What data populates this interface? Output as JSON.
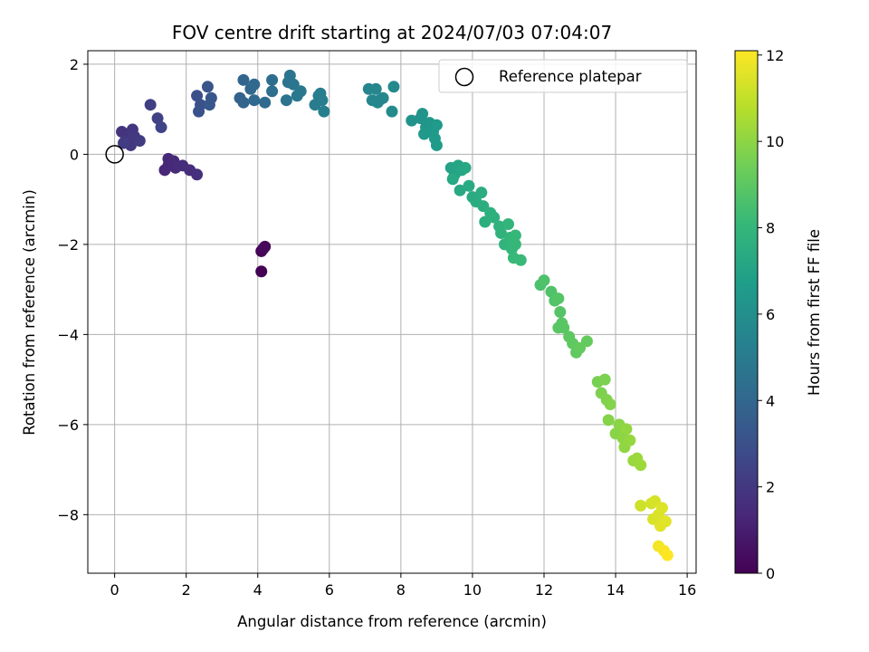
{
  "chart_data": {
    "type": "scatter",
    "title": "FOV centre drift starting at 2024/07/03 07:04:07",
    "xlabel": "Angular distance from reference (arcmin)",
    "ylabel": "Rotation from reference (arcmin)",
    "xlim": [
      -0.75,
      16.25
    ],
    "ylim": [
      -9.3,
      2.3
    ],
    "xticks": [
      0,
      2,
      4,
      6,
      8,
      10,
      12,
      14,
      16
    ],
    "yticks": [
      2,
      0,
      -2,
      -4,
      -6,
      -8
    ],
    "grid": true,
    "legend": {
      "label": "Reference platepar",
      "position": "top-right"
    },
    "reference_point": {
      "x": 0,
      "y": 0
    },
    "colorbar": {
      "label": "Hours from first FF file",
      "min": 0,
      "max": 12.1,
      "ticks": [
        0,
        2,
        4,
        6,
        8,
        10,
        12
      ],
      "colormap": "viridis",
      "colors": [
        "#440154",
        "#482878",
        "#3e4989",
        "#31688e",
        "#26828e",
        "#1f9e89",
        "#35b779",
        "#6ece58",
        "#b5de2b",
        "#fde725"
      ]
    },
    "points": [
      {
        "x": 4.1,
        "y": -2.6,
        "h": 0.0
      },
      {
        "x": 4.1,
        "y": -2.15,
        "h": 0.1
      },
      {
        "x": 4.2,
        "y": -2.05,
        "h": 0.2
      },
      {
        "x": 4.15,
        "y": -2.1,
        "h": 0.25
      },
      {
        "x": 1.4,
        "y": -0.35,
        "h": 1.3
      },
      {
        "x": 1.5,
        "y": -0.1,
        "h": 1.35
      },
      {
        "x": 1.6,
        "y": -0.2,
        "h": 1.4
      },
      {
        "x": 1.65,
        "y": -0.15,
        "h": 1.45
      },
      {
        "x": 1.7,
        "y": -0.3,
        "h": 1.5
      },
      {
        "x": 1.9,
        "y": -0.25,
        "h": 1.55
      },
      {
        "x": 2.1,
        "y": -0.35,
        "h": 1.6
      },
      {
        "x": 2.3,
        "y": -0.45,
        "h": 1.65
      },
      {
        "x": 1.5,
        "y": -0.25,
        "h": 1.35
      },
      {
        "x": 0.2,
        "y": 0.5,
        "h": 1.8
      },
      {
        "x": 0.35,
        "y": 0.45,
        "h": 1.85
      },
      {
        "x": 0.5,
        "y": 0.55,
        "h": 1.9
      },
      {
        "x": 0.3,
        "y": 0.3,
        "h": 1.95
      },
      {
        "x": 0.45,
        "y": 0.2,
        "h": 2.0
      },
      {
        "x": 0.55,
        "y": 0.4,
        "h": 2.05
      },
      {
        "x": 0.7,
        "y": 0.3,
        "h": 2.1
      },
      {
        "x": 0.25,
        "y": 0.25,
        "h": 2.15
      },
      {
        "x": 1.0,
        "y": 1.1,
        "h": 2.3
      },
      {
        "x": 1.2,
        "y": 0.8,
        "h": 2.4
      },
      {
        "x": 1.3,
        "y": 0.6,
        "h": 2.5
      },
      {
        "x": 2.3,
        "y": 1.3,
        "h": 3.0
      },
      {
        "x": 2.4,
        "y": 1.1,
        "h": 3.05
      },
      {
        "x": 2.35,
        "y": 0.95,
        "h": 3.1
      },
      {
        "x": 2.6,
        "y": 1.5,
        "h": 3.2
      },
      {
        "x": 2.7,
        "y": 1.25,
        "h": 3.25
      },
      {
        "x": 2.65,
        "y": 1.1,
        "h": 3.3
      },
      {
        "x": 3.5,
        "y": 1.25,
        "h": 3.8
      },
      {
        "x": 3.6,
        "y": 1.15,
        "h": 3.85
      },
      {
        "x": 3.6,
        "y": 1.65,
        "h": 3.9
      },
      {
        "x": 3.8,
        "y": 1.45,
        "h": 4.0
      },
      {
        "x": 3.9,
        "y": 1.55,
        "h": 4.05
      },
      {
        "x": 3.9,
        "y": 1.2,
        "h": 4.1
      },
      {
        "x": 4.2,
        "y": 1.15,
        "h": 4.2
      },
      {
        "x": 4.4,
        "y": 1.65,
        "h": 4.3
      },
      {
        "x": 4.4,
        "y": 1.4,
        "h": 4.35
      },
      {
        "x": 4.8,
        "y": 1.2,
        "h": 4.6
      },
      {
        "x": 4.85,
        "y": 1.6,
        "h": 4.65
      },
      {
        "x": 4.9,
        "y": 1.75,
        "h": 4.7
      },
      {
        "x": 5.0,
        "y": 1.55,
        "h": 4.75
      },
      {
        "x": 5.1,
        "y": 1.3,
        "h": 4.8
      },
      {
        "x": 5.2,
        "y": 1.4,
        "h": 4.85
      },
      {
        "x": 5.6,
        "y": 1.1,
        "h": 5.0
      },
      {
        "x": 5.7,
        "y": 1.3,
        "h": 5.05
      },
      {
        "x": 5.75,
        "y": 1.35,
        "h": 5.1
      },
      {
        "x": 5.8,
        "y": 1.2,
        "h": 5.15
      },
      {
        "x": 5.85,
        "y": 0.95,
        "h": 5.2
      },
      {
        "x": 7.1,
        "y": 1.45,
        "h": 5.5
      },
      {
        "x": 7.2,
        "y": 1.2,
        "h": 5.55
      },
      {
        "x": 7.3,
        "y": 1.45,
        "h": 5.6
      },
      {
        "x": 7.35,
        "y": 1.15,
        "h": 5.65
      },
      {
        "x": 7.5,
        "y": 1.25,
        "h": 5.7
      },
      {
        "x": 7.8,
        "y": 1.5,
        "h": 5.75
      },
      {
        "x": 7.75,
        "y": 0.95,
        "h": 5.8
      },
      {
        "x": 7.4,
        "y": 1.2,
        "h": 5.62
      },
      {
        "x": 8.3,
        "y": 0.75,
        "h": 6.2
      },
      {
        "x": 8.55,
        "y": 0.8,
        "h": 6.25
      },
      {
        "x": 8.6,
        "y": 0.9,
        "h": 6.3
      },
      {
        "x": 8.7,
        "y": 0.6,
        "h": 6.35
      },
      {
        "x": 8.8,
        "y": 0.7,
        "h": 6.4
      },
      {
        "x": 8.65,
        "y": 0.45,
        "h": 6.45
      },
      {
        "x": 8.9,
        "y": 0.5,
        "h": 6.5
      },
      {
        "x": 9.0,
        "y": 0.65,
        "h": 6.55
      },
      {
        "x": 8.95,
        "y": 0.35,
        "h": 6.6
      },
      {
        "x": 9.0,
        "y": 0.2,
        "h": 6.65
      },
      {
        "x": 9.4,
        "y": -0.3,
        "h": 7.0
      },
      {
        "x": 9.5,
        "y": -0.45,
        "h": 7.05
      },
      {
        "x": 9.6,
        "y": -0.25,
        "h": 7.1
      },
      {
        "x": 9.7,
        "y": -0.35,
        "h": 7.15
      },
      {
        "x": 9.8,
        "y": -0.3,
        "h": 7.2
      },
      {
        "x": 9.45,
        "y": -0.55,
        "h": 7.25
      },
      {
        "x": 9.65,
        "y": -0.8,
        "h": 7.3
      },
      {
        "x": 9.9,
        "y": -0.7,
        "h": 7.35
      },
      {
        "x": 10.0,
        "y": -0.95,
        "h": 7.4
      },
      {
        "x": 10.1,
        "y": -1.05,
        "h": 7.45
      },
      {
        "x": 10.25,
        "y": -0.85,
        "h": 7.5
      },
      {
        "x": 10.3,
        "y": -1.15,
        "h": 7.55
      },
      {
        "x": 10.35,
        "y": -1.5,
        "h": 7.6
      },
      {
        "x": 10.5,
        "y": -1.3,
        "h": 7.65
      },
      {
        "x": 10.6,
        "y": -1.4,
        "h": 7.7
      },
      {
        "x": 10.75,
        "y": -1.6,
        "h": 7.75
      },
      {
        "x": 10.8,
        "y": -1.75,
        "h": 7.8
      },
      {
        "x": 10.9,
        "y": -2.0,
        "h": 7.85
      },
      {
        "x": 11.0,
        "y": -1.55,
        "h": 7.9
      },
      {
        "x": 11.05,
        "y": -1.85,
        "h": 7.95
      },
      {
        "x": 11.1,
        "y": -2.1,
        "h": 8.0
      },
      {
        "x": 11.2,
        "y": -1.8,
        "h": 8.05
      },
      {
        "x": 11.15,
        "y": -2.3,
        "h": 8.1
      },
      {
        "x": 11.35,
        "y": -2.35,
        "h": 8.15
      },
      {
        "x": 11.2,
        "y": -2.0,
        "h": 8.08
      },
      {
        "x": 11.9,
        "y": -2.9,
        "h": 8.6
      },
      {
        "x": 12.0,
        "y": -2.8,
        "h": 8.65
      },
      {
        "x": 12.2,
        "y": -3.05,
        "h": 8.7
      },
      {
        "x": 12.3,
        "y": -3.25,
        "h": 8.75
      },
      {
        "x": 12.4,
        "y": -3.2,
        "h": 8.8
      },
      {
        "x": 12.45,
        "y": -3.5,
        "h": 8.85
      },
      {
        "x": 12.5,
        "y": -3.75,
        "h": 8.9
      },
      {
        "x": 12.55,
        "y": -3.85,
        "h": 8.95
      },
      {
        "x": 12.4,
        "y": -3.85,
        "h": 8.92
      },
      {
        "x": 12.7,
        "y": -4.05,
        "h": 9.0
      },
      {
        "x": 12.8,
        "y": -4.2,
        "h": 9.05
      },
      {
        "x": 12.9,
        "y": -4.4,
        "h": 9.1
      },
      {
        "x": 13.0,
        "y": -4.3,
        "h": 9.15
      },
      {
        "x": 13.2,
        "y": -4.15,
        "h": 9.2
      },
      {
        "x": 13.5,
        "y": -5.05,
        "h": 9.6
      },
      {
        "x": 13.7,
        "y": -5.0,
        "h": 9.65
      },
      {
        "x": 13.6,
        "y": -5.3,
        "h": 9.7
      },
      {
        "x": 13.75,
        "y": -5.45,
        "h": 9.75
      },
      {
        "x": 13.85,
        "y": -5.55,
        "h": 9.8
      },
      {
        "x": 13.8,
        "y": -5.9,
        "h": 9.85
      },
      {
        "x": 14.0,
        "y": -6.2,
        "h": 9.9
      },
      {
        "x": 14.1,
        "y": -6.0,
        "h": 9.95
      },
      {
        "x": 14.2,
        "y": -6.3,
        "h": 10.0
      },
      {
        "x": 14.25,
        "y": -6.5,
        "h": 10.05
      },
      {
        "x": 14.3,
        "y": -6.1,
        "h": 10.1
      },
      {
        "x": 14.4,
        "y": -6.35,
        "h": 10.15
      },
      {
        "x": 14.5,
        "y": -6.8,
        "h": 10.2
      },
      {
        "x": 14.6,
        "y": -6.75,
        "h": 10.25
      },
      {
        "x": 14.7,
        "y": -6.9,
        "h": 10.3
      },
      {
        "x": 14.7,
        "y": -7.8,
        "h": 11.2
      },
      {
        "x": 15.0,
        "y": -7.75,
        "h": 11.3
      },
      {
        "x": 15.1,
        "y": -7.7,
        "h": 11.35
      },
      {
        "x": 15.05,
        "y": -8.1,
        "h": 11.4
      },
      {
        "x": 15.2,
        "y": -8.0,
        "h": 11.45
      },
      {
        "x": 15.3,
        "y": -7.85,
        "h": 11.5
      },
      {
        "x": 15.25,
        "y": -8.25,
        "h": 11.55
      },
      {
        "x": 15.4,
        "y": -8.15,
        "h": 11.6
      },
      {
        "x": 15.2,
        "y": -8.7,
        "h": 11.9
      },
      {
        "x": 15.35,
        "y": -8.8,
        "h": 12.0
      },
      {
        "x": 15.45,
        "y": -8.9,
        "h": 12.1
      }
    ]
  }
}
